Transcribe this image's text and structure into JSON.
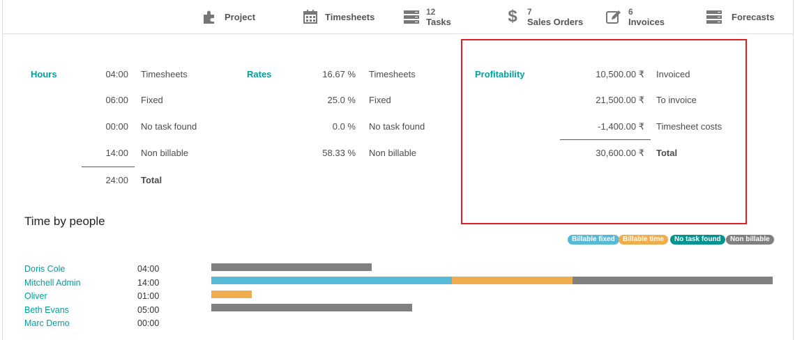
{
  "colors": {
    "billable_fixed": "#56b9d6",
    "billable_time": "#f0ad4e",
    "no_task_found": "#00938f",
    "non_billable": "#808080",
    "accent": "#00a09d",
    "highlight_border": "#e02020"
  },
  "statbar": {
    "project": {
      "label": "Project",
      "icon": "puzzle-icon"
    },
    "timesheets": {
      "label": "Timesheets",
      "icon": "calendar-icon"
    },
    "tasks": {
      "count": "12",
      "label": "Tasks",
      "icon": "tasks-icon"
    },
    "sales_orders": {
      "count": "7",
      "label": "Sales Orders",
      "icon": "dollar-icon"
    },
    "invoices": {
      "count": "6",
      "label": "Invoices",
      "icon": "edit-icon"
    },
    "forecasts": {
      "label": "Forecasts",
      "icon": "tasks-icon"
    }
  },
  "hours": {
    "title": "Hours",
    "rows": [
      {
        "value": "04:00",
        "label": "Timesheets"
      },
      {
        "value": "06:00",
        "label": "Fixed"
      },
      {
        "value": "00:00",
        "label": "No task found"
      },
      {
        "value": "14:00",
        "label": "Non billable"
      }
    ],
    "total": {
      "value": "24:00",
      "label": "Total"
    }
  },
  "rates": {
    "title": "Rates",
    "rows": [
      {
        "value": "16.67 %",
        "label": "Timesheets"
      },
      {
        "value": "25.0 %",
        "label": "Fixed"
      },
      {
        "value": "0.0 %",
        "label": "No task found"
      },
      {
        "value": "58.33 %",
        "label": "Non billable"
      }
    ]
  },
  "profitability": {
    "title": "Profitability",
    "rows": [
      {
        "value": "10,500.00 ₹",
        "label": "Invoiced"
      },
      {
        "value": "21,500.00 ₹",
        "label": "To invoice"
      },
      {
        "value": "-1,400.00 ₹",
        "label": "Timesheet costs"
      }
    ],
    "total": {
      "value": "30,600.00 ₹",
      "label": "Total"
    }
  },
  "time_by_people": {
    "title": "Time by people",
    "legend": [
      "Billable fixed",
      "Billable time",
      "No task found",
      "Non billable"
    ],
    "people": [
      {
        "name": "Doris Cole",
        "time": "04:00",
        "billable_fixed": 0,
        "billable_time": 0,
        "no_task_found": 0,
        "non_billable": 4
      },
      {
        "name": "Mitchell Admin",
        "time": "14:00",
        "billable_fixed": 6,
        "billable_time": 3,
        "no_task_found": 0,
        "non_billable": 5
      },
      {
        "name": "Oliver",
        "time": "01:00",
        "billable_fixed": 0,
        "billable_time": 1,
        "no_task_found": 0,
        "non_billable": 0
      },
      {
        "name": "Beth Evans",
        "time": "05:00",
        "billable_fixed": 0,
        "billable_time": 0,
        "no_task_found": 0,
        "non_billable": 5
      },
      {
        "name": "Marc Demo",
        "time": "00:00",
        "billable_fixed": 0,
        "billable_time": 0,
        "no_task_found": 0,
        "non_billable": 0
      }
    ]
  }
}
